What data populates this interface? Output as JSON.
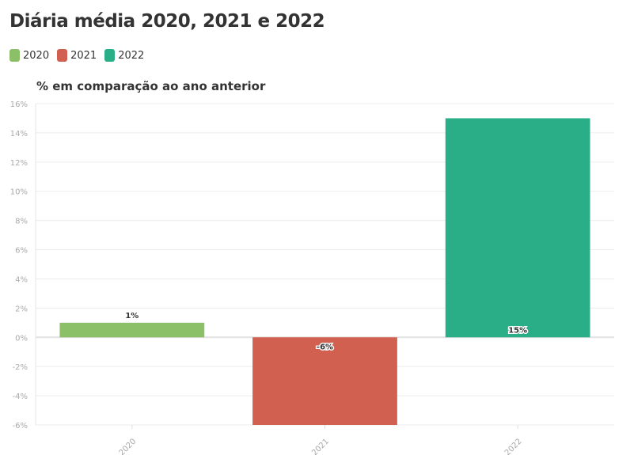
{
  "title": "Diária média 2020, 2021 e 2022",
  "legend": [
    {
      "label": "2020",
      "color": "#8bbf68"
    },
    {
      "label": "2021",
      "color": "#d16050"
    },
    {
      "label": "2022",
      "color": "#2aae88"
    }
  ],
  "chart_data": {
    "type": "bar",
    "title": "Diária média 2020, 2021 e 2022",
    "subtitle": "% em comparação ao ano anterior",
    "categories": [
      "2020",
      "2021",
      "2022"
    ],
    "values": [
      1,
      -6,
      15
    ],
    "data_labels": [
      "1%",
      "-6%",
      "15%"
    ],
    "colors": [
      "#8bbf68",
      "#d16050",
      "#2aae88"
    ],
    "ylim": [
      -6,
      16
    ],
    "yticks": [
      16,
      14,
      12,
      10,
      8,
      6,
      4,
      2,
      0,
      -2,
      -4,
      -6
    ],
    "ytick_labels": [
      "16%",
      "14%",
      "12%",
      "10%",
      "8%",
      "6%",
      "4%",
      "2%",
      "0%",
      "-2%",
      "-4%",
      "-6%"
    ],
    "grid": true,
    "legend_position": "top-left"
  }
}
